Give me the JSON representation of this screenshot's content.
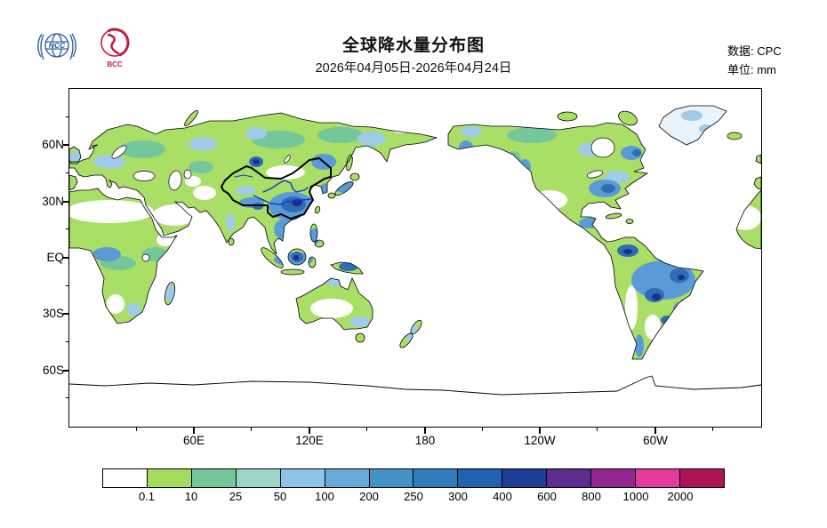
{
  "header": {
    "title": "全球降水量分布图",
    "subtitle": "2026年04月05日-2026年04月24日",
    "source_label": "数据: CPC",
    "unit_label": "单位: mm",
    "ncc_logo": "NCC",
    "bcc_logo": "BCC"
  },
  "map": {
    "lat_labels": [
      "60N",
      "30N",
      "EQ",
      "30S",
      "60S"
    ],
    "lon_labels": [
      "60E",
      "120E",
      "180",
      "120W",
      "60W"
    ]
  },
  "chart_data": {
    "type": "heatmap",
    "title": "全球降水量分布图",
    "period": "2026年04月05日-2026年04月24日",
    "source": "CPC",
    "unit": "mm",
    "projection": "equirectangular world map, Pacific-centered (approx 5W eastward through 180 to 5W)",
    "lat_ticks": [
      "60N",
      "30N",
      "EQ",
      "30S",
      "60S"
    ],
    "lon_ticks": [
      "60E",
      "120E",
      "180",
      "120W",
      "60W"
    ],
    "grid": false,
    "colorbar": {
      "levels": [
        "0.1",
        "10",
        "25",
        "50",
        "100",
        "200",
        "250",
        "300",
        "400",
        "600",
        "800",
        "1000",
        "2000"
      ],
      "colors": [
        "#ffffff",
        "#a4dd5e",
        "#74c69b",
        "#9bd6c9",
        "#8ec4e8",
        "#67a9d8",
        "#4292c6",
        "#2e7ebc",
        "#2163ae",
        "#1c3e95",
        "#5e2b8e",
        "#93278f",
        "#e5399e",
        "#ad1457"
      ],
      "position": "bottom",
      "description": "accumulated precipitation in mm; white < 0.1, dark red > 2000"
    },
    "regions_high_precip": [
      "south China and Southeast Asia",
      "Indonesia and New Guinea",
      "equatorial Africa",
      "Amazon basin and Brazil",
      "Colombia",
      "eastern North America",
      "Japan"
    ],
    "regions_low_precip": [
      "Sahara",
      "Arabian Peninsula",
      "Mongolia / Gobi",
      "central Australia",
      "southwestern North America",
      "Antarctica (no data / white)"
    ],
    "overlays": [
      "China national boundary (bold black)",
      "Yellow River and Yangtze River (blue lines)"
    ]
  }
}
